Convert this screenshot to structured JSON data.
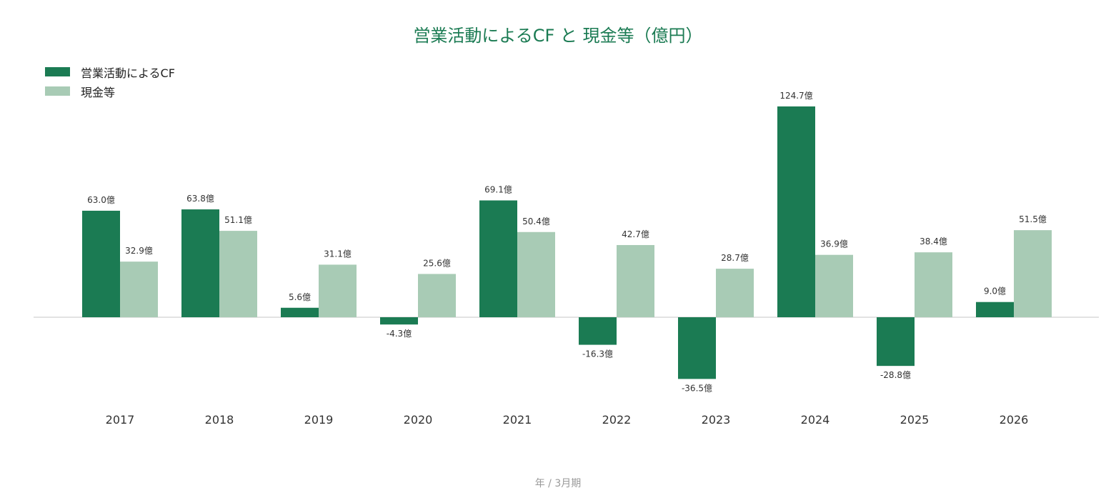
{
  "title": "営業活動によるCF と 現金等（億円）",
  "legend": [
    {
      "label": "営業活動によるCF",
      "color": "#1b7b53"
    },
    {
      "label": "現金等",
      "color": "#a8cbb5"
    }
  ],
  "chart_data": {
    "type": "bar",
    "title": "営業活動によるCF と 現金等（億円）",
    "xlabel": "年 / 3月期",
    "ylabel": "",
    "categories": [
      "2017",
      "2018",
      "2019",
      "2020",
      "2021",
      "2022",
      "2023",
      "2024",
      "2025",
      "2026"
    ],
    "value_suffix": "億",
    "series": [
      {
        "name": "営業活動によるCF",
        "color": "#1b7b53",
        "values": [
          63.0,
          63.8,
          5.6,
          -4.3,
          69.1,
          -16.3,
          -36.5,
          124.7,
          -28.8,
          9.0
        ]
      },
      {
        "name": "現金等",
        "color": "#a8cbb5",
        "values": [
          32.9,
          51.1,
          31.1,
          25.6,
          50.4,
          42.7,
          28.7,
          36.9,
          38.4,
          51.5
        ]
      }
    ],
    "grid": false,
    "legend_position": "top-left"
  }
}
